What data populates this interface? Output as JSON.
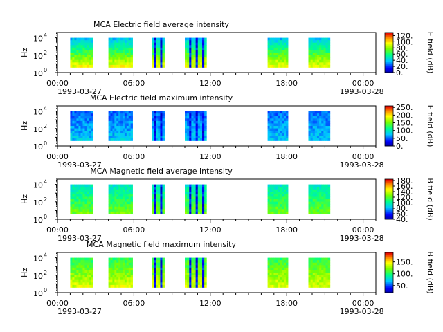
{
  "chart_data": [
    {
      "type": "heatmap",
      "title": "MCA  Electric field average intensity",
      "ylabel": "Hz",
      "y_ticks": [
        "10",
        "10",
        "10"
      ],
      "y_tick_exponents": [
        "0",
        "2",
        "4"
      ],
      "x_ticks": [
        "00:00",
        "06:00",
        "12:00",
        "18:00",
        "00:00"
      ],
      "x_start_date": "1993-03-27",
      "x_end_date": "1993-03-28",
      "xlim": [
        "1993-03-27 00:00",
        "1993-03-28 01:00"
      ],
      "ylim": [
        1,
        40000
      ],
      "y_scale": "log",
      "colorbar_label": "E field (dB)",
      "colorbar_ticks": [
        "0.",
        "20.",
        "40.",
        "60.",
        "80.",
        "100.",
        "120."
      ],
      "colorbar_range": [
        0,
        130
      ],
      "colormap": "rainbow (blue-low, red-high)",
      "data_intervals_hours": [
        [
          1.0,
          2.8
        ],
        [
          4.0,
          5.9
        ],
        [
          7.4,
          8.4
        ],
        [
          10.0,
          11.7
        ],
        [
          16.5,
          18.1
        ],
        [
          19.7,
          21.4
        ]
      ],
      "typical_value_low_freq_db": 95,
      "typical_value_high_freq_db": 40
    },
    {
      "type": "heatmap",
      "title": "MCA  Electric field maximum intensity",
      "ylabel": "Hz",
      "y_ticks": [
        "10",
        "10",
        "10"
      ],
      "y_tick_exponents": [
        "0",
        "2",
        "4"
      ],
      "x_ticks": [
        "00:00",
        "06:00",
        "12:00",
        "18:00",
        "00:00"
      ],
      "x_start_date": "1993-03-27",
      "x_end_date": "1993-03-28",
      "xlim": [
        "1993-03-27 00:00",
        "1993-03-28 01:00"
      ],
      "ylim": [
        1,
        40000
      ],
      "y_scale": "log",
      "colorbar_label": "E field (dB)",
      "colorbar_ticks": [
        "0.",
        "50.",
        "100.",
        "150.",
        "200.",
        "250."
      ],
      "colorbar_range": [
        0,
        260
      ],
      "colormap": "rainbow (blue-low, red-high)",
      "data_intervals_hours": [
        [
          1.0,
          2.8
        ],
        [
          4.0,
          5.9
        ],
        [
          7.4,
          8.4
        ],
        [
          10.0,
          11.7
        ],
        [
          16.5,
          18.1
        ],
        [
          19.7,
          21.4
        ]
      ],
      "typical_value_low_freq_db": 80,
      "typical_value_high_freq_db": 55
    },
    {
      "type": "heatmap",
      "title": "MCA  Magnetic field average intensity",
      "ylabel": "Hz",
      "y_ticks": [
        "10",
        "10",
        "10"
      ],
      "y_tick_exponents": [
        "0",
        "2",
        "4"
      ],
      "x_ticks": [
        "00:00",
        "06:00",
        "12:00",
        "18:00",
        "00:00"
      ],
      "x_start_date": "1993-03-27",
      "x_end_date": "1993-03-28",
      "xlim": [
        "1993-03-27 00:00",
        "1993-03-28 01:00"
      ],
      "ylim": [
        1,
        40000
      ],
      "y_scale": "log",
      "colorbar_label": "B field (dB)",
      "colorbar_ticks": [
        "40.",
        "60.",
        "80.",
        "100.",
        "120.",
        "140.",
        "160.",
        "180."
      ],
      "colorbar_range": [
        40,
        185
      ],
      "colormap": "rainbow (blue-low, red-high)",
      "data_intervals_hours": [
        [
          1.0,
          2.8
        ],
        [
          4.0,
          5.9
        ],
        [
          7.4,
          8.4
        ],
        [
          10.0,
          11.7
        ],
        [
          16.5,
          18.1
        ],
        [
          19.7,
          21.4
        ]
      ],
      "typical_value_low_freq_db": 125,
      "typical_value_high_freq_db": 95
    },
    {
      "type": "heatmap",
      "title": "MCA  Magnetic field maximum intensity",
      "ylabel": "Hz",
      "y_ticks": [
        "10",
        "10",
        "10"
      ],
      "y_tick_exponents": [
        "0",
        "2",
        "4"
      ],
      "x_ticks": [
        "00:00",
        "06:00",
        "12:00",
        "18:00",
        "00:00"
      ],
      "x_start_date": "1993-03-27",
      "x_end_date": "1993-03-28",
      "xlim": [
        "1993-03-27 00:00",
        "1993-03-28 01:00"
      ],
      "ylim": [
        1,
        40000
      ],
      "y_scale": "log",
      "colorbar_label": "B field (dB)",
      "colorbar_ticks": [
        "50.",
        "100.",
        "150."
      ],
      "colorbar_range": [
        20,
        190
      ],
      "colormap": "rainbow (blue-low, red-high)",
      "data_intervals_hours": [
        [
          1.0,
          2.8
        ],
        [
          4.0,
          5.9
        ],
        [
          7.4,
          8.4
        ],
        [
          10.0,
          11.7
        ],
        [
          16.5,
          18.1
        ],
        [
          19.7,
          21.4
        ]
      ],
      "typical_value_low_freq_db": 140,
      "typical_value_high_freq_db": 105
    }
  ]
}
